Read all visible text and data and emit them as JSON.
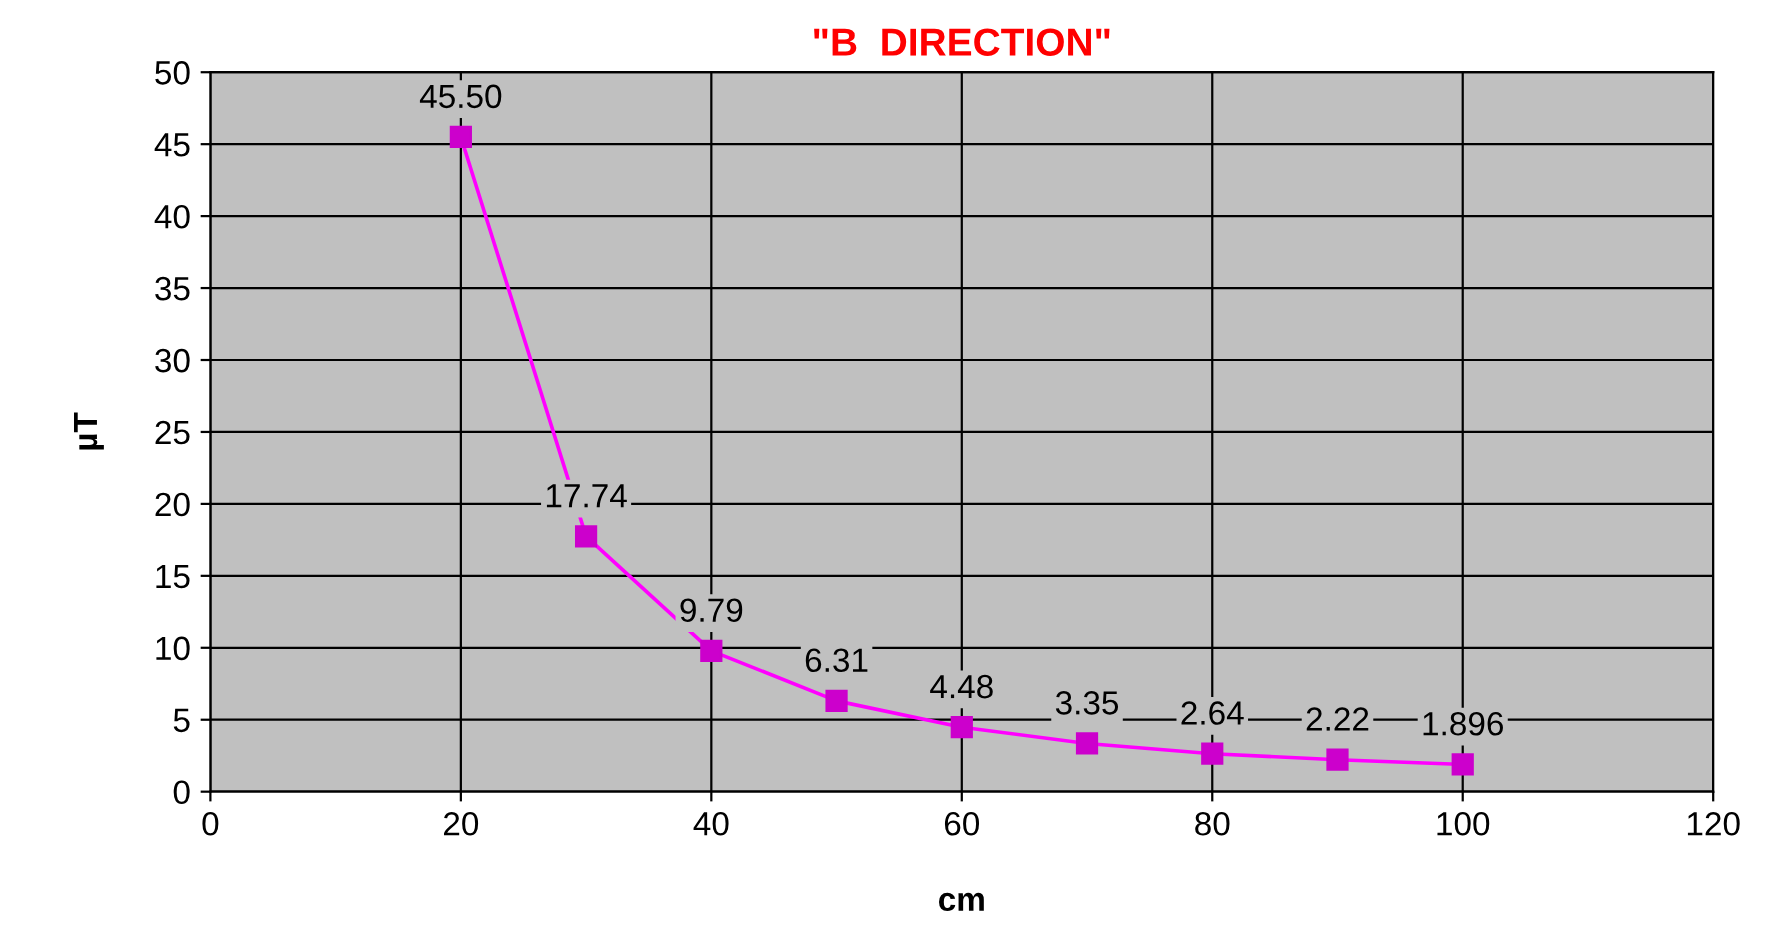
{
  "chart_data": {
    "type": "line",
    "title": "\"B  DIRECTION\"",
    "xlabel": "cm",
    "ylabel": "µT",
    "x": [
      20,
      30,
      40,
      50,
      60,
      70,
      80,
      90,
      100
    ],
    "series": [
      {
        "color": "#ff00ff",
        "values": [
          45.5,
          17.74,
          9.79,
          6.31,
          4.48,
          3.35,
          2.64,
          2.22,
          1.896
        ],
        "value_labels": [
          "45.50",
          "17.74",
          "9.79",
          "6.31",
          "4.48",
          "3.35",
          "2.64",
          "2.22",
          "1.896"
        ]
      }
    ],
    "xlim": [
      0,
      120
    ],
    "xticks": [
      0,
      20,
      40,
      60,
      80,
      100,
      120
    ],
    "ylim": [
      0,
      50
    ],
    "yticks": [
      0,
      5,
      10,
      15,
      20,
      25,
      30,
      35,
      40,
      45,
      50
    ],
    "grid": true,
    "marker": "square",
    "line_style": "solid"
  }
}
